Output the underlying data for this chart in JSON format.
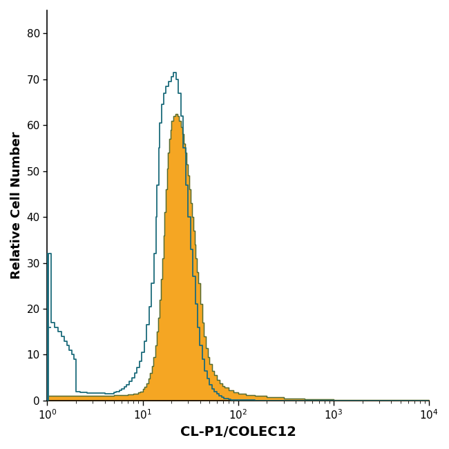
{
  "title": "",
  "xlabel": "CL-P1/COLEC12",
  "ylabel": "Relative Cell Number",
  "xlim": [
    1,
    10000
  ],
  "ylim": [
    0,
    85
  ],
  "yticks": [
    0,
    10,
    20,
    30,
    40,
    50,
    60,
    70,
    80
  ],
  "background_color": "#ffffff",
  "blue_color": "#1b6b7b",
  "orange_color": "#f5a623",
  "orange_edge_color": "#4a6b3a",
  "blue_hist_x": [
    1.0,
    1.1,
    1.2,
    1.3,
    1.4,
    1.5,
    1.6,
    1.7,
    1.8,
    1.9,
    2.0,
    2.1,
    2.2,
    2.4,
    2.6,
    2.8,
    3.0,
    3.2,
    3.5,
    3.8,
    4.0,
    4.3,
    4.6,
    5.0,
    5.3,
    5.7,
    6.0,
    6.4,
    6.8,
    7.2,
    7.7,
    8.2,
    8.7,
    9.2,
    9.8,
    10.4,
    11.0,
    11.7,
    12.4,
    13.1,
    13.9,
    14.0,
    14.8,
    15.0,
    15.7,
    16.6,
    17.6,
    18.7,
    19.8,
    21.0,
    22.3,
    23.6,
    25.0,
    26.5,
    28.1,
    29.8,
    31.6,
    33.5,
    35.5,
    37.6,
    39.8,
    42.2,
    44.7,
    47.3,
    50.1,
    53.1,
    56.2,
    59.6,
    63.1,
    66.8,
    70.8,
    75.0,
    79.4,
    84.1,
    89.1,
    94.4,
    100.0,
    150.0,
    200.0,
    300.0,
    500.0,
    1000.0,
    10000.0
  ],
  "blue_hist_y": [
    32,
    17,
    16,
    15,
    14,
    13,
    12,
    11,
    10,
    9,
    2,
    2,
    1.8,
    1.8,
    1.7,
    1.7,
    1.7,
    1.6,
    1.6,
    1.6,
    1.5,
    1.5,
    1.5,
    1.8,
    2.0,
    2.2,
    2.5,
    3.0,
    3.5,
    4.2,
    5.0,
    6.0,
    7.2,
    8.5,
    10.5,
    13.0,
    16.5,
    20.5,
    25.5,
    32.0,
    40.0,
    47.0,
    55.0,
    60.5,
    64.5,
    67.0,
    68.5,
    69.5,
    70.5,
    71.5,
    70.0,
    67.0,
    62.0,
    55.0,
    47.0,
    40.0,
    33.0,
    27.0,
    21.0,
    16.0,
    12.0,
    9.0,
    6.5,
    4.8,
    3.5,
    2.5,
    2.0,
    1.5,
    1.0,
    0.8,
    0.5,
    0.4,
    0.3,
    0.2,
    0.2,
    0.1,
    0.1,
    0,
    0,
    0,
    0,
    0,
    0
  ],
  "orange_hist_x": [
    1.0,
    1.5,
    2.0,
    2.5,
    3.0,
    3.5,
    4.0,
    4.5,
    5.0,
    5.5,
    6.0,
    6.5,
    7.0,
    7.5,
    8.0,
    8.5,
    9.0,
    9.5,
    10.0,
    10.5,
    11.0,
    11.5,
    12.0,
    12.5,
    13.0,
    13.5,
    14.0,
    14.5,
    15.0,
    15.5,
    16.0,
    16.5,
    17.0,
    17.5,
    18.0,
    18.5,
    19.0,
    19.5,
    20.0,
    21.0,
    22.0,
    23.0,
    24.0,
    25.0,
    26.0,
    27.0,
    28.0,
    29.0,
    30.0,
    31.0,
    32.0,
    33.0,
    34.0,
    35.0,
    36.0,
    37.0,
    38.0,
    40.0,
    42.0,
    44.0,
    46.0,
    48.0,
    50.0,
    53.0,
    56.0,
    60.0,
    64.0,
    68.0,
    72.0,
    80.0,
    90.0,
    100.0,
    120.0,
    150.0,
    200.0,
    300.0,
    500.0,
    1000.0,
    10000.0
  ],
  "orange_hist_y": [
    1.0,
    1.0,
    1.0,
    1.0,
    1.0,
    1.0,
    1.0,
    1.0,
    1.2,
    1.2,
    1.2,
    1.2,
    1.3,
    1.3,
    1.5,
    1.5,
    1.8,
    2.0,
    2.5,
    3.0,
    3.8,
    4.8,
    6.0,
    7.5,
    9.5,
    12.0,
    15.0,
    18.0,
    22.0,
    26.5,
    31.0,
    36.0,
    41.0,
    46.0,
    50.5,
    54.0,
    57.0,
    59.0,
    61.0,
    62.0,
    62.5,
    62.0,
    61.0,
    59.5,
    58.0,
    56.0,
    54.0,
    51.5,
    49.0,
    46.0,
    43.0,
    40.0,
    37.0,
    34.0,
    31.0,
    28.0,
    25.5,
    21.0,
    17.0,
    14.0,
    11.5,
    9.5,
    8.0,
    6.5,
    5.5,
    4.5,
    3.8,
    3.2,
    2.8,
    2.2,
    1.8,
    1.5,
    1.2,
    1.0,
    0.7,
    0.5,
    0.3,
    0.15,
    0
  ]
}
